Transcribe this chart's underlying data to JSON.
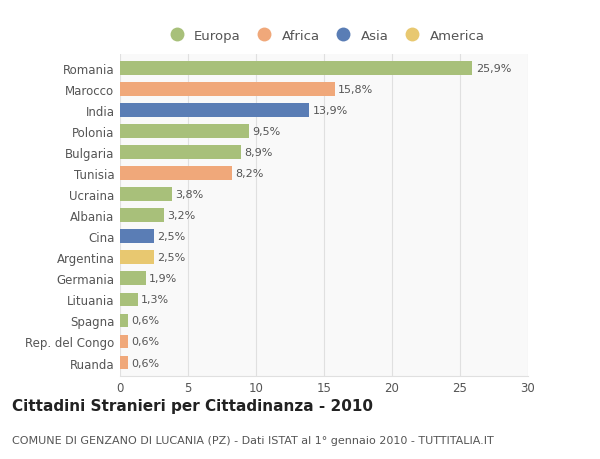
{
  "categories": [
    "Romania",
    "Marocco",
    "India",
    "Polonia",
    "Bulgaria",
    "Tunisia",
    "Ucraina",
    "Albania",
    "Cina",
    "Argentina",
    "Germania",
    "Lituania",
    "Spagna",
    "Rep. del Congo",
    "Ruanda"
  ],
  "values": [
    25.9,
    15.8,
    13.9,
    9.5,
    8.9,
    8.2,
    3.8,
    3.2,
    2.5,
    2.5,
    1.9,
    1.3,
    0.6,
    0.6,
    0.6
  ],
  "labels": [
    "25,9%",
    "15,8%",
    "13,9%",
    "9,5%",
    "8,9%",
    "8,2%",
    "3,8%",
    "3,2%",
    "2,5%",
    "2,5%",
    "1,9%",
    "1,3%",
    "0,6%",
    "0,6%",
    "0,6%"
  ],
  "colors": [
    "#a8c07a",
    "#f0a87a",
    "#5a7db5",
    "#a8c07a",
    "#a8c07a",
    "#f0a87a",
    "#a8c07a",
    "#a8c07a",
    "#5a7db5",
    "#e8c870",
    "#a8c07a",
    "#a8c07a",
    "#a8c07a",
    "#f0a87a",
    "#f0a87a"
  ],
  "legend_labels": [
    "Europa",
    "Africa",
    "Asia",
    "America"
  ],
  "legend_colors": [
    "#a8c07a",
    "#f0a87a",
    "#5a7db5",
    "#e8c870"
  ],
  "title": "Cittadini Stranieri per Cittadinanza - 2010",
  "subtitle": "COMUNE DI GENZANO DI LUCANIA (PZ) - Dati ISTAT al 1° gennaio 2010 - TUTTITALIA.IT",
  "xlim": [
    0,
    30
  ],
  "xticks": [
    0,
    5,
    10,
    15,
    20,
    25,
    30
  ],
  "background_color": "#ffffff",
  "plot_bg_color": "#f9f9f9",
  "grid_color": "#e0e0e0",
  "bar_height": 0.65,
  "title_fontsize": 11,
  "subtitle_fontsize": 8,
  "tick_fontsize": 8.5,
  "label_fontsize": 8,
  "legend_fontsize": 9.5
}
